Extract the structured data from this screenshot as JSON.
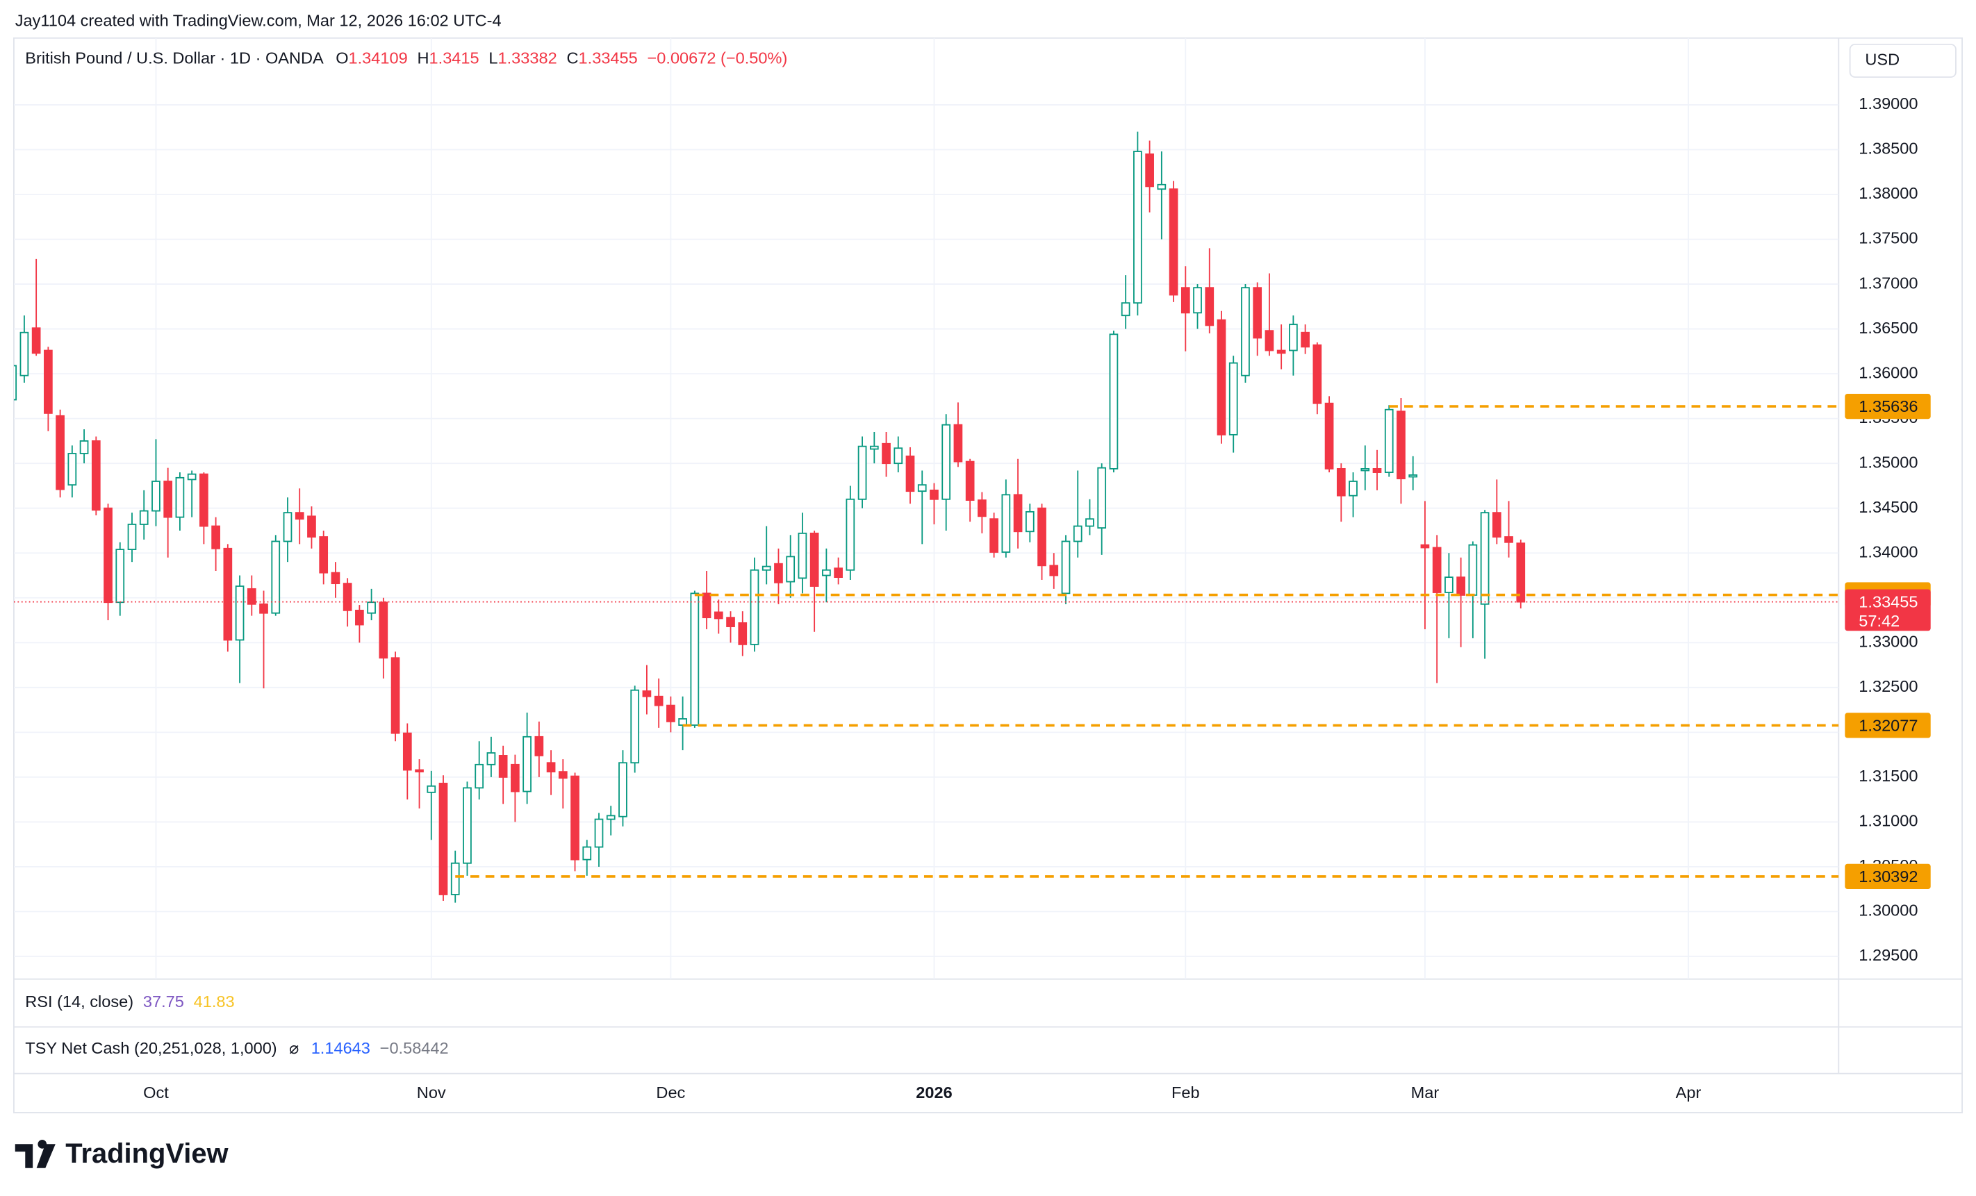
{
  "header": {
    "credit": "Jay1104 created with TradingView.com, Mar 12, 2026 16:02 UTC-4",
    "symbol": "British Pound / U.S. Dollar · 1D · OANDA",
    "ohlc_labels": [
      "O",
      "H",
      "L",
      "C"
    ],
    "change": "−0.00672 (−0.50%)",
    "currency": "USD"
  },
  "indicators": {
    "rsi": {
      "label": "RSI (14, close)",
      "values": [
        "37.75",
        "41.83"
      ]
    },
    "tsy": {
      "label": "TSY Net Cash (20,251,028, 1,000)",
      "symbol": "⌀",
      "values": [
        "1.14643",
        "−0.58442"
      ]
    }
  },
  "footer": {
    "logo": "TradingView"
  },
  "chart_data": {
    "type": "candlestick",
    "up_color": "#089981",
    "down_color": "#f23645",
    "level_color": "#f59f00",
    "grid": true,
    "ylim": [
      1.29247,
      1.39745
    ],
    "xlim": [
      -0.5,
      151.5
    ],
    "yticks": [
      {
        "value": 1.39,
        "label": "1.39000"
      },
      {
        "value": 1.385,
        "label": "1.38500"
      },
      {
        "value": 1.38,
        "label": "1.38000"
      },
      {
        "value": 1.375,
        "label": "1.37500"
      },
      {
        "value": 1.37,
        "label": "1.37000"
      },
      {
        "value": 1.365,
        "label": "1.36500"
      },
      {
        "value": 1.36,
        "label": "1.36000"
      },
      {
        "value": 1.355,
        "label": "1.35500"
      },
      {
        "value": 1.35,
        "label": "1.35000"
      },
      {
        "value": 1.345,
        "label": "1.34500"
      },
      {
        "value": 1.34,
        "label": "1.34000"
      },
      {
        "value": 1.335,
        "label": "1.33500"
      },
      {
        "value": 1.33,
        "label": "1.33000"
      },
      {
        "value": 1.325,
        "label": "1.32500"
      },
      {
        "value": 1.32,
        "label": "1.32000"
      },
      {
        "value": 1.315,
        "label": "1.31500"
      },
      {
        "value": 1.31,
        "label": "1.31000"
      },
      {
        "value": 1.305,
        "label": "1.30500"
      },
      {
        "value": 1.3,
        "label": "1.30000"
      },
      {
        "value": 1.295,
        "label": "1.29500"
      }
    ],
    "xticks": [
      {
        "value": 12,
        "label": "Oct"
      },
      {
        "value": 35,
        "label": "Nov"
      },
      {
        "value": 55,
        "label": "Dec"
      },
      {
        "value": 77,
        "label": "2026",
        "bold": true
      },
      {
        "value": 98,
        "label": "Feb"
      },
      {
        "value": 118,
        "label": "Mar"
      },
      {
        "value": 140,
        "label": "Apr"
      }
    ],
    "candles": [
      [
        1.3571,
        1.3615,
        1.3565,
        1.3609
      ],
      [
        1.3598,
        1.3665,
        1.359,
        1.3646
      ],
      [
        1.3651,
        1.3728,
        1.362,
        1.3623
      ],
      [
        1.3626,
        1.363,
        1.3536,
        1.3556
      ],
      [
        1.3553,
        1.356,
        1.3462,
        1.3471
      ],
      [
        1.3476,
        1.352,
        1.3462,
        1.3511
      ],
      [
        1.3511,
        1.3538,
        1.35,
        1.3525
      ],
      [
        1.3525,
        1.353,
        1.3442,
        1.3448
      ],
      [
        1.345,
        1.3455,
        1.3325,
        1.3345
      ],
      [
        1.3345,
        1.3412,
        1.333,
        1.3404
      ],
      [
        1.3404,
        1.3445,
        1.339,
        1.3432
      ],
      [
        1.3432,
        1.347,
        1.3415,
        1.3447
      ],
      [
        1.3447,
        1.3527,
        1.343,
        1.348
      ],
      [
        1.348,
        1.3495,
        1.3395,
        1.344
      ],
      [
        1.344,
        1.349,
        1.3425,
        1.3484
      ],
      [
        1.3482,
        1.3492,
        1.344,
        1.3488
      ],
      [
        1.3488,
        1.349,
        1.341,
        1.343
      ],
      [
        1.343,
        1.344,
        1.338,
        1.3405
      ],
      [
        1.3405,
        1.341,
        1.329,
        1.3303
      ],
      [
        1.3303,
        1.3375,
        1.3255,
        1.3363
      ],
      [
        1.336,
        1.3375,
        1.333,
        1.3343
      ],
      [
        1.3343,
        1.3358,
        1.3249,
        1.3333
      ],
      [
        1.3333,
        1.342,
        1.333,
        1.3413
      ],
      [
        1.3413,
        1.3462,
        1.339,
        1.3445
      ],
      [
        1.3445,
        1.3472,
        1.341,
        1.3438
      ],
      [
        1.3441,
        1.3452,
        1.3405,
        1.3418
      ],
      [
        1.3418,
        1.3425,
        1.3365,
        1.3378
      ],
      [
        1.3378,
        1.339,
        1.335,
        1.3366
      ],
      [
        1.3366,
        1.3372,
        1.3318,
        1.3336
      ],
      [
        1.3336,
        1.3342,
        1.33,
        1.332
      ],
      [
        1.3333,
        1.336,
        1.3325,
        1.3345
      ],
      [
        1.3345,
        1.335,
        1.326,
        1.3283
      ],
      [
        1.3283,
        1.329,
        1.319,
        1.3199
      ],
      [
        1.3199,
        1.321,
        1.3125,
        1.3158
      ],
      [
        1.3158,
        1.317,
        1.3115,
        1.3156
      ],
      [
        1.3133,
        1.3157,
        1.308,
        1.314
      ],
      [
        1.3143,
        1.3152,
        1.3012,
        1.3019
      ],
      [
        1.3019,
        1.3068,
        1.301,
        1.3054
      ],
      [
        1.3054,
        1.3145,
        1.304,
        1.3138
      ],
      [
        1.3138,
        1.319,
        1.3125,
        1.3164
      ],
      [
        1.3164,
        1.3195,
        1.315,
        1.3177
      ],
      [
        1.3174,
        1.3185,
        1.312,
        1.315
      ],
      [
        1.3164,
        1.3175,
        1.31,
        1.3134
      ],
      [
        1.3134,
        1.3222,
        1.312,
        1.3195
      ],
      [
        1.3195,
        1.3212,
        1.315,
        1.3174
      ],
      [
        1.3166,
        1.318,
        1.313,
        1.3156
      ],
      [
        1.3156,
        1.317,
        1.3115,
        1.3149
      ],
      [
        1.3151,
        1.3155,
        1.3045,
        1.3058
      ],
      [
        1.3058,
        1.308,
        1.304,
        1.3072
      ],
      [
        1.3072,
        1.311,
        1.305,
        1.3103
      ],
      [
        1.3103,
        1.3118,
        1.3085,
        1.3107
      ],
      [
        1.3106,
        1.318,
        1.3095,
        1.3166
      ],
      [
        1.3166,
        1.3252,
        1.3155,
        1.3247
      ],
      [
        1.3246,
        1.3275,
        1.322,
        1.324
      ],
      [
        1.324,
        1.326,
        1.3205,
        1.323
      ],
      [
        1.323,
        1.324,
        1.32,
        1.3212
      ],
      [
        1.3208,
        1.324,
        1.318,
        1.3215
      ],
      [
        1.3208,
        1.3358,
        1.3205,
        1.3355
      ],
      [
        1.3355,
        1.338,
        1.3315,
        1.3328
      ],
      [
        1.3334,
        1.3348,
        1.331,
        1.3327
      ],
      [
        1.3328,
        1.3335,
        1.33,
        1.3318
      ],
      [
        1.3322,
        1.3335,
        1.3285,
        1.3298
      ],
      [
        1.3298,
        1.3395,
        1.329,
        1.3381
      ],
      [
        1.3381,
        1.343,
        1.3365,
        1.3385
      ],
      [
        1.3388,
        1.3405,
        1.3343,
        1.3367
      ],
      [
        1.3368,
        1.342,
        1.335,
        1.3396
      ],
      [
        1.3372,
        1.3445,
        1.3355,
        1.3422
      ],
      [
        1.3422,
        1.3425,
        1.3312,
        1.3363
      ],
      [
        1.3375,
        1.3405,
        1.3345,
        1.3381
      ],
      [
        1.3383,
        1.3395,
        1.3365,
        1.3373
      ],
      [
        1.3381,
        1.3475,
        1.337,
        1.346
      ],
      [
        1.346,
        1.353,
        1.345,
        1.3519
      ],
      [
        1.3516,
        1.3535,
        1.35,
        1.3519
      ],
      [
        1.3522,
        1.3535,
        1.3485,
        1.35
      ],
      [
        1.35,
        1.353,
        1.349,
        1.3517
      ],
      [
        1.3508,
        1.3518,
        1.3455,
        1.3469
      ],
      [
        1.3469,
        1.3492,
        1.341,
        1.3476
      ],
      [
        1.347,
        1.3478,
        1.3432,
        1.346
      ],
      [
        1.346,
        1.3555,
        1.3425,
        1.3543
      ],
      [
        1.3543,
        1.3568,
        1.3496,
        1.3502
      ],
      [
        1.3502,
        1.3505,
        1.3435,
        1.3459
      ],
      [
        1.3459,
        1.3468,
        1.3422,
        1.3441
      ],
      [
        1.3438,
        1.3445,
        1.3395,
        1.3401
      ],
      [
        1.3401,
        1.3482,
        1.3395,
        1.3465
      ],
      [
        1.3465,
        1.3505,
        1.3405,
        1.3424
      ],
      [
        1.3424,
        1.3455,
        1.3412,
        1.3446
      ],
      [
        1.345,
        1.3455,
        1.337,
        1.3386
      ],
      [
        1.3386,
        1.34,
        1.336,
        1.3375
      ],
      [
        1.3355,
        1.342,
        1.3343,
        1.3413
      ],
      [
        1.3413,
        1.3492,
        1.3395,
        1.343
      ],
      [
        1.343,
        1.346,
        1.342,
        1.3438
      ],
      [
        1.3428,
        1.35,
        1.3398,
        1.3495
      ],
      [
        1.3494,
        1.3648,
        1.349,
        1.3644
      ],
      [
        1.3665,
        1.371,
        1.365,
        1.3679
      ],
      [
        1.3679,
        1.387,
        1.3665,
        1.3848
      ],
      [
        1.3845,
        1.386,
        1.378,
        1.3809
      ],
      [
        1.3806,
        1.3848,
        1.375,
        1.3811
      ],
      [
        1.3806,
        1.3815,
        1.368,
        1.3688
      ],
      [
        1.3696,
        1.372,
        1.3625,
        1.3668
      ],
      [
        1.3668,
        1.37,
        1.365,
        1.3696
      ],
      [
        1.3696,
        1.374,
        1.3645,
        1.3654
      ],
      [
        1.366,
        1.367,
        1.3522,
        1.3532
      ],
      [
        1.3532,
        1.362,
        1.3512,
        1.3612
      ],
      [
        1.3598,
        1.37,
        1.359,
        1.3696
      ],
      [
        1.3696,
        1.3702,
        1.362,
        1.364
      ],
      [
        1.3648,
        1.3712,
        1.362,
        1.3626
      ],
      [
        1.3626,
        1.3655,
        1.3605,
        1.3623
      ],
      [
        1.3626,
        1.3665,
        1.3598,
        1.3655
      ],
      [
        1.3646,
        1.3655,
        1.3622,
        1.363
      ],
      [
        1.3632,
        1.3635,
        1.3555,
        1.3567
      ],
      [
        1.3567,
        1.3575,
        1.349,
        1.3494
      ],
      [
        1.3494,
        1.35,
        1.3435,
        1.3464
      ],
      [
        1.3464,
        1.349,
        1.344,
        1.348
      ],
      [
        1.3492,
        1.352,
        1.347,
        1.3494
      ],
      [
        1.3494,
        1.3515,
        1.347,
        1.349
      ],
      [
        1.349,
        1.3565,
        1.3485,
        1.356
      ],
      [
        1.3558,
        1.3573,
        1.3455,
        1.3483
      ],
      [
        1.3485,
        1.3508,
        1.347,
        1.3487
      ],
      [
        1.3409,
        1.3458,
        1.3315,
        1.3406
      ],
      [
        1.3406,
        1.342,
        1.3255,
        1.3356
      ],
      [
        1.3356,
        1.34,
        1.3305,
        1.3373
      ],
      [
        1.3373,
        1.3395,
        1.3295,
        1.3353
      ],
      [
        1.3353,
        1.3413,
        1.3305,
        1.3409
      ],
      [
        1.3343,
        1.3448,
        1.3282,
        1.3445
      ],
      [
        1.3445,
        1.3482,
        1.341,
        1.3418
      ],
      [
        1.3418,
        1.3458,
        1.3395,
        1.3412
      ],
      [
        1.34109,
        1.3415,
        1.33382,
        1.33455
      ]
    ],
    "countdown": "57:42",
    "levels": [
      {
        "value": 1.35636,
        "from": 115
      },
      {
        "value": 1.33533,
        "from": 57
      },
      {
        "value": 1.32077,
        "from": 56
      },
      {
        "value": 1.30392,
        "from": 37
      }
    ]
  }
}
